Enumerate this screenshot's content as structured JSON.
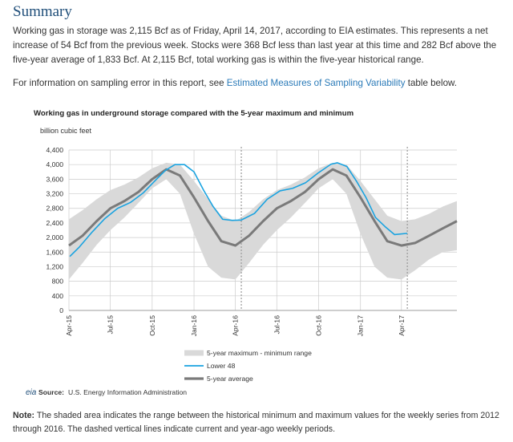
{
  "summary": {
    "heading": "Summary",
    "paragraph": "Working gas in storage was 2,115 Bcf as of Friday, April 14, 2017, according to EIA estimates. This represents a net increase of 54 Bcf from the previous week. Stocks were 368 Bcf less than last year at this time and 282 Bcf above the five-year average of 1,833 Bcf. At 2,115 Bcf, total working gas is within the five-year historical range.",
    "sampling_prefix": "For information on sampling error in this report, see ",
    "sampling_link": "Estimated Measures of Sampling Variability",
    "sampling_suffix": " table below."
  },
  "source": {
    "logo_text": "eia",
    "label": "Source:",
    "text": "U.S. Energy Information Administration"
  },
  "note": {
    "label": "Note:",
    "text": "The shaded area indicates the range between the historical minimum and maximum values for the weekly series from 2012 through 2016. The dashed vertical lines indicate current and year-ago weekly periods."
  },
  "colors": {
    "range": "#d9d9d9",
    "lower48": "#1aa3e0",
    "average": "#7a7a7a",
    "grid": "#cccccc",
    "dashed": "#999999"
  },
  "chart_data": {
    "type": "line",
    "title": "Working gas in underground storage compared with the 5-year maximum and minimum",
    "ylabel": "billion cubic feet",
    "ylim": [
      0,
      4400
    ],
    "yticks": [
      "0",
      "400",
      "800",
      "1,200",
      "1,600",
      "2,000",
      "2,400",
      "2,800",
      "3,200",
      "3,600",
      "4,000",
      "4,400"
    ],
    "yticks_values": [
      0,
      400,
      800,
      1200,
      1600,
      2000,
      2400,
      2800,
      3200,
      3600,
      4000,
      4400
    ],
    "x_range": [
      "2015-04-01",
      "2017-08-01"
    ],
    "xticks": [
      {
        "label": "Apr-15",
        "date": "2015-04-01"
      },
      {
        "label": "Jul-15",
        "date": "2015-07-01"
      },
      {
        "label": "Oct-15",
        "date": "2015-10-01"
      },
      {
        "label": "Jan-16",
        "date": "2016-01-01"
      },
      {
        "label": "Apr-16",
        "date": "2016-04-01"
      },
      {
        "label": "Jul-16",
        "date": "2016-07-01"
      },
      {
        "label": "Oct-16",
        "date": "2016-10-01"
      },
      {
        "label": "Jan-17",
        "date": "2017-01-01"
      },
      {
        "label": "Apr-17",
        "date": "2017-04-01"
      }
    ],
    "dashed_lines": [
      "2016-04-14",
      "2017-04-14"
    ],
    "legend": {
      "placement": "bottom",
      "entries": [
        "5-year maximum - minimum range",
        "Lower 48",
        "5-year average"
      ]
    },
    "series": [
      {
        "name": "5-year maximum - minimum range",
        "kind": "band",
        "x": [
          "2015-04-01",
          "2015-05-01",
          "2015-06-01",
          "2015-07-01",
          "2015-08-01",
          "2015-09-01",
          "2015-10-01",
          "2015-11-01",
          "2015-12-01",
          "2016-01-01",
          "2016-02-01",
          "2016-03-01",
          "2016-04-01",
          "2016-05-01",
          "2016-06-01",
          "2016-07-01",
          "2016-08-01",
          "2016-09-01",
          "2016-10-01",
          "2016-11-01",
          "2016-12-01",
          "2017-01-01",
          "2017-02-01",
          "2017-03-01",
          "2017-04-01",
          "2017-05-01",
          "2017-06-01",
          "2017-07-01",
          "2017-08-01"
        ],
        "max": [
          2500,
          2750,
          3050,
          3300,
          3450,
          3650,
          3900,
          4050,
          4000,
          3550,
          3050,
          2600,
          2450,
          2700,
          3050,
          3300,
          3450,
          3650,
          3900,
          4050,
          4000,
          3550,
          3050,
          2600,
          2450,
          2500,
          2650,
          2850,
          3000
        ],
        "min": [
          850,
          1300,
          1800,
          2200,
          2550,
          2950,
          3350,
          3600,
          3200,
          2100,
          1200,
          900,
          850,
          1300,
          1800,
          2200,
          2550,
          2950,
          3350,
          3600,
          3200,
          2100,
          1200,
          900,
          850,
          1100,
          1400,
          1600,
          1650
        ]
      },
      {
        "name": "Lower 48",
        "kind": "line",
        "x": [
          "2015-04-03",
          "2015-04-24",
          "2015-05-22",
          "2015-06-19",
          "2015-07-17",
          "2015-08-14",
          "2015-09-11",
          "2015-10-09",
          "2015-10-30",
          "2015-11-20",
          "2015-12-11",
          "2016-01-01",
          "2016-01-22",
          "2016-02-12",
          "2016-03-04",
          "2016-03-25",
          "2016-04-14",
          "2016-05-13",
          "2016-06-10",
          "2016-07-08",
          "2016-08-05",
          "2016-09-02",
          "2016-09-30",
          "2016-10-28",
          "2016-11-11",
          "2016-12-02",
          "2016-12-23",
          "2017-01-13",
          "2017-02-03",
          "2017-02-24",
          "2017-03-17",
          "2017-04-14"
        ],
        "y": [
          1480,
          1740,
          2150,
          2520,
          2800,
          2960,
          3220,
          3580,
          3840,
          4000,
          4000,
          3800,
          3300,
          2850,
          2500,
          2470,
          2480,
          2660,
          3050,
          3280,
          3350,
          3500,
          3770,
          4010,
          4050,
          3950,
          3550,
          3100,
          2550,
          2300,
          2080,
          2115
        ]
      },
      {
        "name": "5-year average",
        "kind": "line",
        "x": [
          "2015-04-01",
          "2015-05-01",
          "2015-06-01",
          "2015-07-01",
          "2015-08-01",
          "2015-09-01",
          "2015-10-01",
          "2015-11-01",
          "2015-12-01",
          "2016-01-01",
          "2016-02-01",
          "2016-03-01",
          "2016-04-01",
          "2016-05-01",
          "2016-06-01",
          "2016-07-01",
          "2016-08-01",
          "2016-09-01",
          "2016-10-01",
          "2016-11-01",
          "2016-12-01",
          "2017-01-01",
          "2017-02-01",
          "2017-03-01",
          "2017-04-01",
          "2017-05-01",
          "2017-06-01",
          "2017-07-01",
          "2017-08-01"
        ],
        "y": [
          1780,
          2050,
          2450,
          2800,
          3000,
          3250,
          3600,
          3870,
          3700,
          3100,
          2450,
          1900,
          1780,
          2050,
          2450,
          2800,
          3000,
          3250,
          3600,
          3870,
          3700,
          3100,
          2450,
          1900,
          1780,
          1850,
          2050,
          2250,
          2450
        ]
      }
    ]
  }
}
